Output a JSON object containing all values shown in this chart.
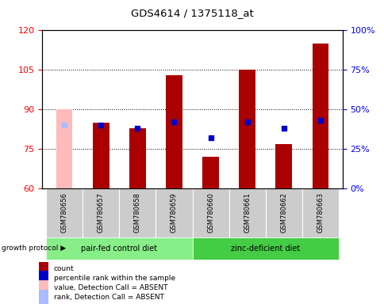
{
  "title": "GDS4614 / 1375118_at",
  "samples": [
    "GSM780656",
    "GSM780657",
    "GSM780658",
    "GSM780659",
    "GSM780660",
    "GSM780661",
    "GSM780662",
    "GSM780663"
  ],
  "count_values": [
    90,
    85,
    83,
    103,
    72,
    105,
    77,
    115
  ],
  "percentile_pct": [
    40,
    40,
    38,
    42,
    32,
    42,
    38,
    43
  ],
  "absent_flags": [
    true,
    false,
    false,
    false,
    false,
    false,
    false,
    false
  ],
  "ylim_left": [
    60,
    120
  ],
  "yticks_left": [
    60,
    75,
    90,
    105,
    120
  ],
  "grid_lines": [
    75,
    90,
    105
  ],
  "right_yticks": [
    0,
    25,
    50,
    75,
    100
  ],
  "right_yticklabels": [
    "0%",
    "25%",
    "50%",
    "75%",
    "100%"
  ],
  "groups": [
    {
      "label": "pair-fed control diet",
      "indices": [
        0,
        1,
        2,
        3
      ],
      "color": "#88ee88"
    },
    {
      "label": "zinc-deficient diet",
      "indices": [
        4,
        5,
        6,
        7
      ],
      "color": "#44cc44"
    }
  ],
  "bar_width": 0.45,
  "bar_color_present": "#aa0000",
  "bar_color_absent": "#ffbbbb",
  "dot_color_present": "#0000cc",
  "dot_color_absent": "#aabbff",
  "dot_size": 22,
  "bar_bottom": 60,
  "sample_box_color": "#cccccc",
  "legend_items": [
    {
      "color": "#aa0000",
      "label": "count"
    },
    {
      "color": "#0000cc",
      "label": "percentile rank within the sample"
    },
    {
      "color": "#ffbbbb",
      "label": "value, Detection Call = ABSENT"
    },
    {
      "color": "#aabbff",
      "label": "rank, Detection Call = ABSENT"
    }
  ]
}
